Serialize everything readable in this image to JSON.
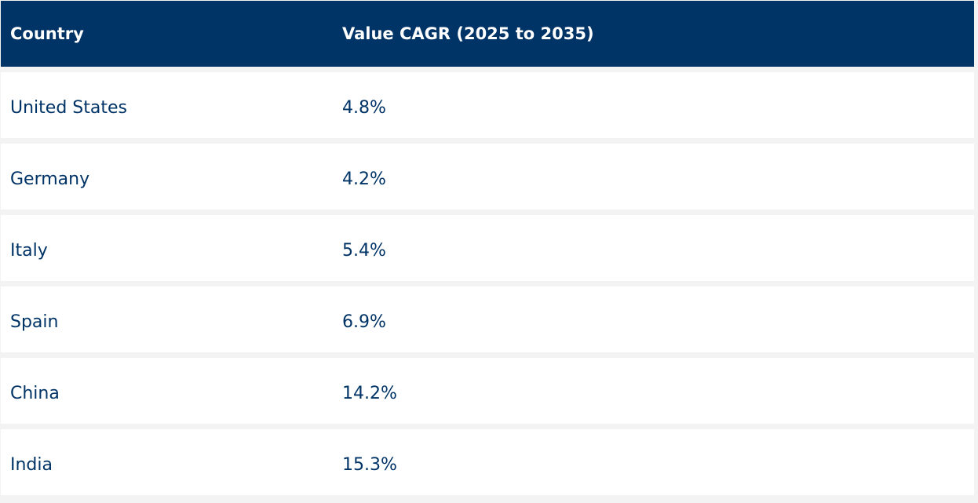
{
  "table": {
    "headers": {
      "country": "Country",
      "cagr": "Value CAGR (2025 to 2035)"
    },
    "rows": [
      {
        "country": "United States",
        "cagr": "4.8%"
      },
      {
        "country": "Germany",
        "cagr": "4.2%"
      },
      {
        "country": "Italy",
        "cagr": "5.4%"
      },
      {
        "country": "Spain",
        "cagr": "6.9%"
      },
      {
        "country": "China",
        "cagr": "14.2%"
      },
      {
        "country": "India",
        "cagr": "15.3%"
      }
    ]
  },
  "colors": {
    "header_background": "#003366",
    "header_text": "#ffffff",
    "row_background": "#ffffff",
    "row_text": "#003366",
    "separator": "#f3f3f3"
  }
}
